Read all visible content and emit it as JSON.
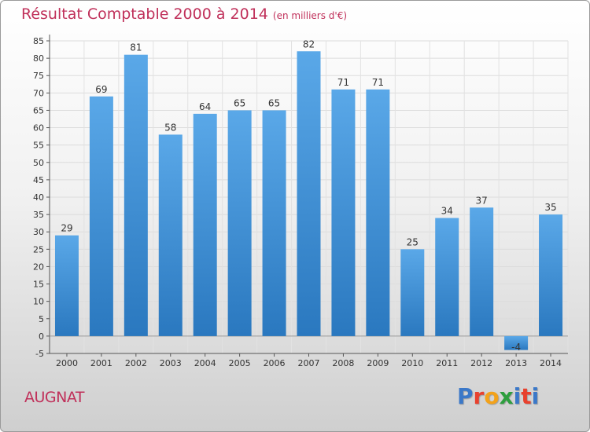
{
  "header": {
    "title": "Résultat Comptable 2000 à 2014",
    "subtitle": "(en milliers d'€)"
  },
  "footer": {
    "location": "AUGNAT",
    "logo_letters": [
      "P",
      "r",
      "o",
      "x",
      "i",
      "t",
      "i"
    ],
    "logo_colors": [
      "#3b78c8",
      "#e8412e",
      "#f3a21a",
      "#2e9e3e",
      "#3b78c8",
      "#e8412e",
      "#3b78c8"
    ]
  },
  "chart_data": {
    "type": "bar",
    "categories": [
      "2000",
      "2001",
      "2002",
      "2003",
      "2004",
      "2005",
      "2006",
      "2007",
      "2008",
      "2009",
      "2010",
      "2011",
      "2012",
      "2013",
      "2014"
    ],
    "values": [
      29,
      69,
      81,
      58,
      64,
      65,
      65,
      82,
      71,
      71,
      25,
      34,
      37,
      -4,
      35
    ],
    "data_labels": [
      "29",
      "69",
      "81",
      "58",
      "64",
      "65",
      "65",
      "82",
      "71",
      "71",
      "25",
      "34",
      "37",
      "-4",
      "35"
    ],
    "yticks": [
      "-5",
      "0",
      "5",
      "10",
      "15",
      "20",
      "25",
      "30",
      "35",
      "40",
      "45",
      "50",
      "55",
      "60",
      "65",
      "70",
      "75",
      "80",
      "85"
    ],
    "ylim": [
      -5,
      85
    ],
    "ytick_step": 5,
    "grid": true,
    "bar_color_top": "#5aa8e8",
    "bar_color_bottom": "#2a78bf"
  }
}
